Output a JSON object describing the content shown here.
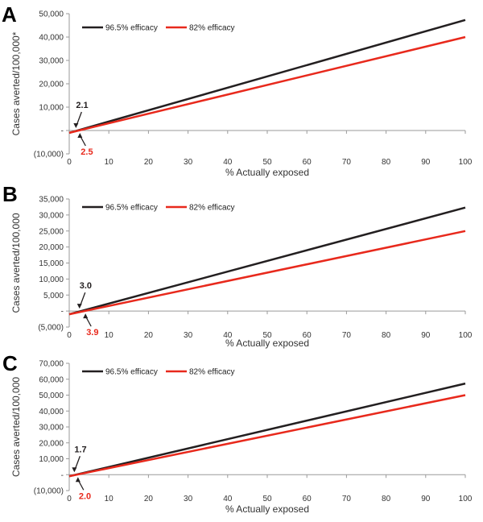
{
  "chart_data": [
    {
      "type": "line",
      "panel_label": "A",
      "xlabel": "% Actually exposed",
      "ylabel": "Cases averted/100,000*",
      "xlim": [
        0,
        100
      ],
      "ylim": [
        -10000,
        50000
      ],
      "x_ticks": [
        0,
        10,
        20,
        30,
        40,
        50,
        60,
        70,
        80,
        90,
        100
      ],
      "x_tick_labels": [
        "0",
        "10",
        "20",
        "30",
        "40",
        "50",
        "60",
        "70",
        "80",
        "90",
        "100"
      ],
      "y_ticks": [
        -10000,
        0,
        10000,
        20000,
        30000,
        40000,
        50000
      ],
      "y_tick_labels": [
        "(10,000)",
        "-",
        "10,000",
        "20,000",
        "30,000",
        "40,000",
        "50,000"
      ],
      "legend_position": "top-left",
      "grid": false,
      "series": [
        {
          "name": "96.5% efficacy",
          "color": "#231f20",
          "x": [
            0,
            100
          ],
          "y": [
            -1000,
            47300
          ]
        },
        {
          "name": "82% efficacy",
          "color": "#e8291c",
          "x": [
            0,
            100
          ],
          "y": [
            -1000,
            40000
          ]
        }
      ],
      "annotations": [
        {
          "text": "2.1",
          "color": "#231f20",
          "x": 2.1,
          "y": 0,
          "position": "above"
        },
        {
          "text": "2.5",
          "color": "#e8291c",
          "x": 2.5,
          "y": 0,
          "position": "below"
        }
      ]
    },
    {
      "type": "line",
      "panel_label": "B",
      "xlabel": "% Actually exposed",
      "ylabel": "Cases averted/100,000",
      "xlim": [
        0,
        100
      ],
      "ylim": [
        -5000,
        35000
      ],
      "x_ticks": [
        0,
        10,
        20,
        30,
        40,
        50,
        60,
        70,
        80,
        90,
        100
      ],
      "x_tick_labels": [
        "0",
        "10",
        "20",
        "30",
        "40",
        "50",
        "60",
        "70",
        "80",
        "90",
        "100"
      ],
      "y_ticks": [
        -5000,
        0,
        5000,
        10000,
        15000,
        20000,
        25000,
        30000,
        35000
      ],
      "y_tick_labels": [
        "(5,000)",
        "-",
        "5,000",
        "10,000",
        "15,000",
        "20,000",
        "25,000",
        "30,000",
        "35,000"
      ],
      "legend_position": "top-left",
      "grid": false,
      "series": [
        {
          "name": "96.5% efficacy",
          "color": "#231f20",
          "x": [
            0,
            100
          ],
          "y": [
            -1000,
            32300
          ]
        },
        {
          "name": "82% efficacy",
          "color": "#e8291c",
          "x": [
            0,
            100
          ],
          "y": [
            -1000,
            25000
          ]
        }
      ],
      "annotations": [
        {
          "text": "3.0",
          "color": "#231f20",
          "x": 3.0,
          "y": 0,
          "position": "above"
        },
        {
          "text": "3.9",
          "color": "#e8291c",
          "x": 3.9,
          "y": 0,
          "position": "below"
        }
      ]
    },
    {
      "type": "line",
      "panel_label": "C",
      "xlabel": "% Actually exposed",
      "ylabel": "Cases averted/100,000",
      "xlim": [
        0,
        100
      ],
      "ylim": [
        -10000,
        70000
      ],
      "x_ticks": [
        0,
        10,
        20,
        30,
        40,
        50,
        60,
        70,
        80,
        90,
        100
      ],
      "x_tick_labels": [
        "0",
        "10",
        "20",
        "30",
        "40",
        "50",
        "60",
        "70",
        "80",
        "90",
        "100"
      ],
      "y_ticks": [
        -10000,
        0,
        10000,
        20000,
        30000,
        40000,
        50000,
        60000,
        70000
      ],
      "y_tick_labels": [
        "(10,000)",
        "-",
        "10,000",
        "20,000",
        "30,000",
        "40,000",
        "50,000",
        "60,000",
        "70,000"
      ],
      "legend_position": "top-left",
      "grid": false,
      "series": [
        {
          "name": "96.5% efficacy",
          "color": "#231f20",
          "x": [
            0,
            100
          ],
          "y": [
            -1000,
            57300
          ]
        },
        {
          "name": "82% efficacy",
          "color": "#e8291c",
          "x": [
            0,
            100
          ],
          "y": [
            -1000,
            50000
          ]
        }
      ],
      "annotations": [
        {
          "text": "1.7",
          "color": "#231f20",
          "x": 1.7,
          "y": 0,
          "position": "above"
        },
        {
          "text": "2.0",
          "color": "#e8291c",
          "x": 2.0,
          "y": 0,
          "position": "below"
        }
      ]
    }
  ]
}
